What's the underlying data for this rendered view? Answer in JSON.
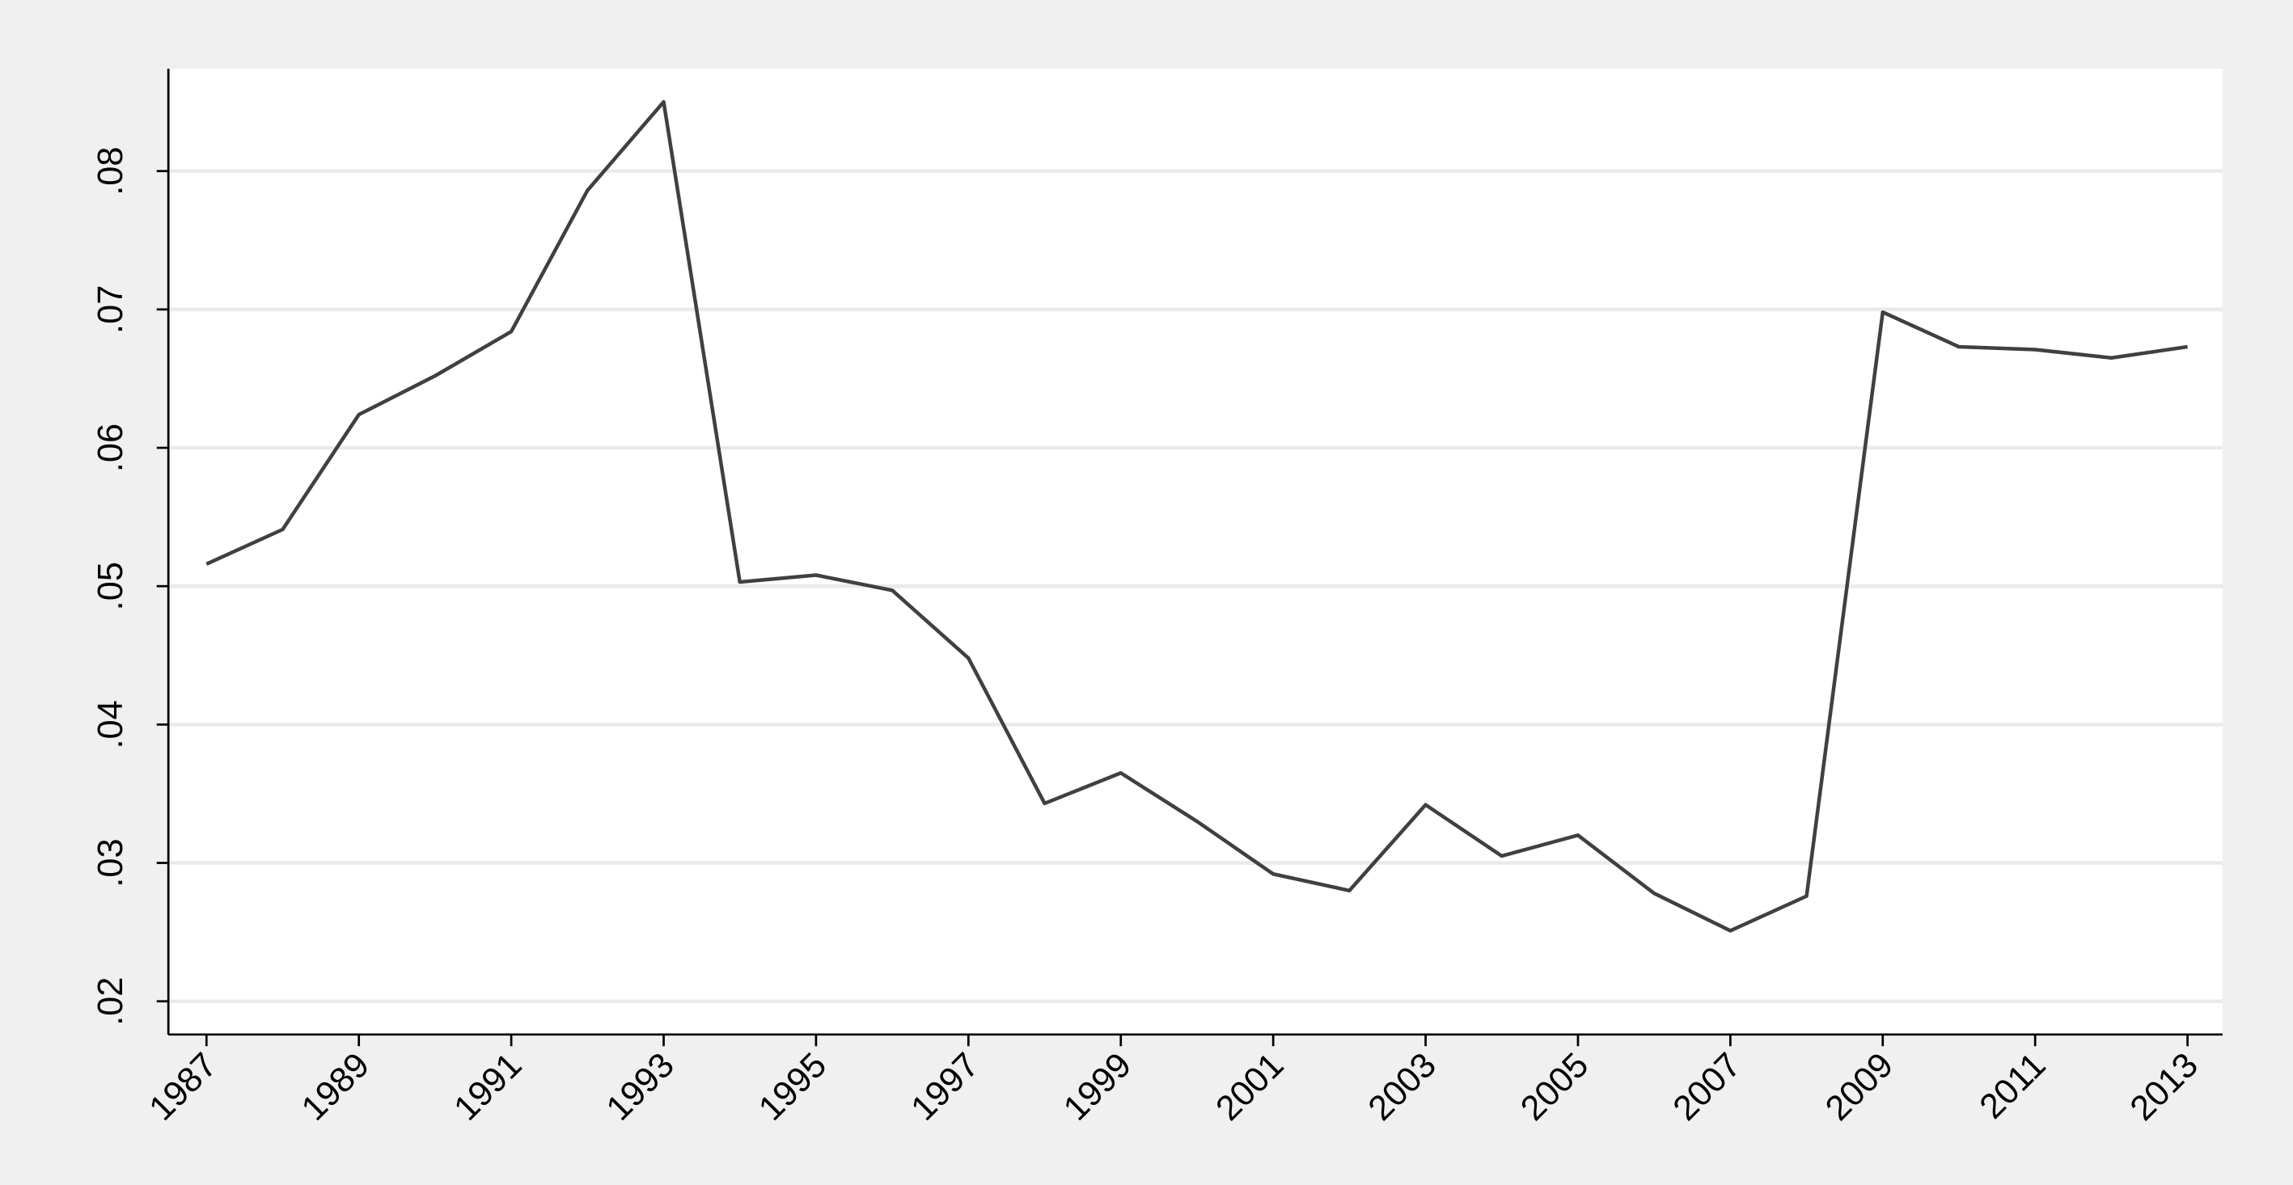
{
  "chart_data": {
    "type": "line",
    "x": [
      1987,
      1988,
      1989,
      1990,
      1991,
      1992,
      1993,
      1994,
      1995,
      1996,
      1997,
      1998,
      1999,
      2000,
      2001,
      2002,
      2003,
      2004,
      2005,
      2006,
      2007,
      2008,
      2009,
      2010,
      2011,
      2012,
      2013
    ],
    "values": [
      0.0516,
      0.0541,
      0.0624,
      0.0652,
      0.0684,
      0.0786,
      0.085,
      0.0503,
      0.0508,
      0.0497,
      0.0448,
      0.0343,
      0.0365,
      0.033,
      0.0292,
      0.028,
      0.0342,
      0.0305,
      0.032,
      0.0278,
      0.0251,
      0.0276,
      0.0698,
      0.0673,
      0.0671,
      0.0665,
      0.0673
    ],
    "color": "#404040",
    "xlim": [
      1986.5,
      2013.46
    ],
    "xticks": [
      1987,
      1989,
      1991,
      1993,
      1995,
      1997,
      1999,
      2001,
      2003,
      2005,
      2007,
      2009,
      2011,
      2013
    ],
    "ylim": [
      0.0176,
      0.0874
    ],
    "yticks": [
      {
        "value": 0.02,
        "label": ".02"
      },
      {
        "value": 0.03,
        "label": ".03"
      },
      {
        "value": 0.04,
        "label": ".04"
      },
      {
        "value": 0.05,
        "label": ".05"
      },
      {
        "value": 0.06,
        "label": ".06"
      },
      {
        "value": 0.07,
        "label": ".07"
      },
      {
        "value": 0.08,
        "label": ".08"
      }
    ],
    "grid": true
  }
}
